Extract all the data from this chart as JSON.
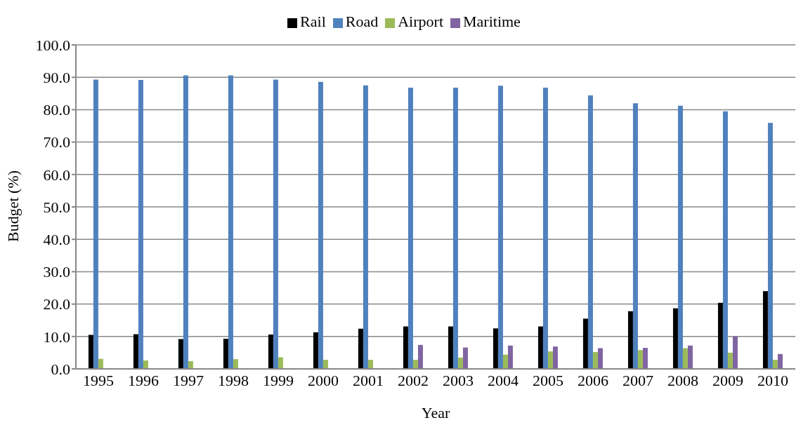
{
  "chart_data": {
    "type": "bar",
    "xlabel": "Year",
    "ylabel": "Budget (%)",
    "categories": [
      "1995",
      "1996",
      "1997",
      "1998",
      "1999",
      "2000",
      "2001",
      "2002",
      "2003",
      "2004",
      "2005",
      "2006",
      "2007",
      "2008",
      "2009",
      "2010"
    ],
    "series": [
      {
        "name": "Rail",
        "color": "#000000",
        "values": [
          10.5,
          10.7,
          9.2,
          9.3,
          10.6,
          11.3,
          12.4,
          13.1,
          13.1,
          12.5,
          13.1,
          15.5,
          17.8,
          18.7,
          20.4,
          24.0
        ]
      },
      {
        "name": "Road",
        "color": "#4f81bd",
        "values": [
          89.3,
          89.2,
          90.6,
          90.6,
          89.3,
          88.6,
          87.5,
          86.8,
          86.8,
          87.4,
          86.8,
          84.4,
          82.0,
          81.2,
          79.5,
          75.9
        ]
      },
      {
        "name": "Airport",
        "color": "#9bbb59",
        "values": [
          3.1,
          2.6,
          2.4,
          3.0,
          3.6,
          2.8,
          2.8,
          2.8,
          3.5,
          4.4,
          5.4,
          5.2,
          5.8,
          6.4,
          5.0,
          2.8
        ]
      },
      {
        "name": "Maritime",
        "color": "#8064a2",
        "values": [
          0,
          0,
          0,
          0,
          0,
          0,
          0,
          7.4,
          6.6,
          7.2,
          6.9,
          6.4,
          6.5,
          7.2,
          10.0,
          4.6
        ]
      }
    ],
    "ylim": [
      0,
      100
    ],
    "yticks": [
      {
        "value": 0,
        "label": "0.0"
      },
      {
        "value": 10,
        "label": "10.0"
      },
      {
        "value": 20,
        "label": "20.0"
      },
      {
        "value": 30,
        "label": "30.0"
      },
      {
        "value": 40,
        "label": "40.0"
      },
      {
        "value": 50,
        "label": "50.0"
      },
      {
        "value": 60,
        "label": "60.0"
      },
      {
        "value": 70,
        "label": "70.0"
      },
      {
        "value": 80,
        "label": "80.0"
      },
      {
        "value": 90,
        "label": "90.0"
      },
      {
        "value": 100,
        "label": "100.0"
      }
    ],
    "grid": "y",
    "legend": "top"
  }
}
